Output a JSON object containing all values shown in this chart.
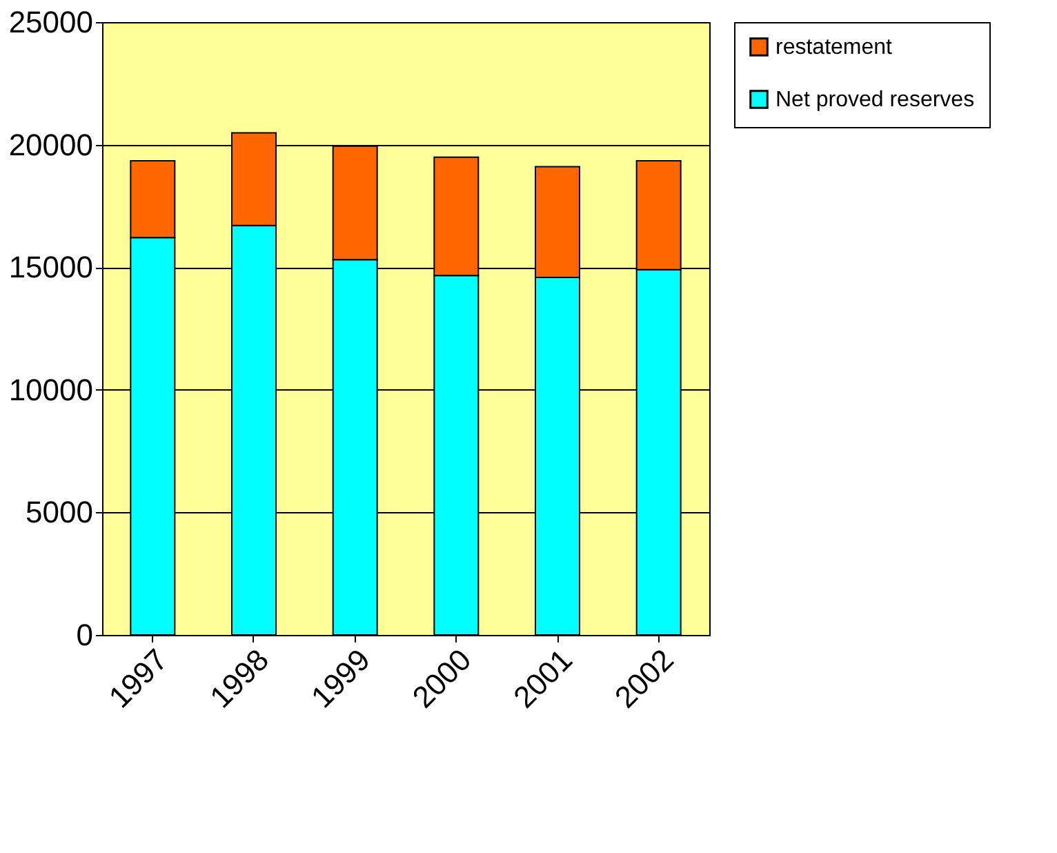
{
  "chart_data": {
    "type": "bar",
    "stacked": true,
    "categories": [
      "1997",
      "1998",
      "1999",
      "2000",
      "2001",
      "2002"
    ],
    "series": [
      {
        "name": "Net proved reserves",
        "color": "#00ffff",
        "values": [
          16210,
          16700,
          15310,
          14660,
          14580,
          14900
        ]
      },
      {
        "name": "restatement",
        "color": "#ff6600",
        "values": [
          3130,
          3780,
          4630,
          4830,
          4520,
          4440
        ]
      }
    ],
    "ylim": [
      0,
      25000
    ],
    "yticks": [
      0,
      5000,
      10000,
      15000,
      20000,
      25000
    ],
    "grid": "y",
    "legend": "right"
  }
}
